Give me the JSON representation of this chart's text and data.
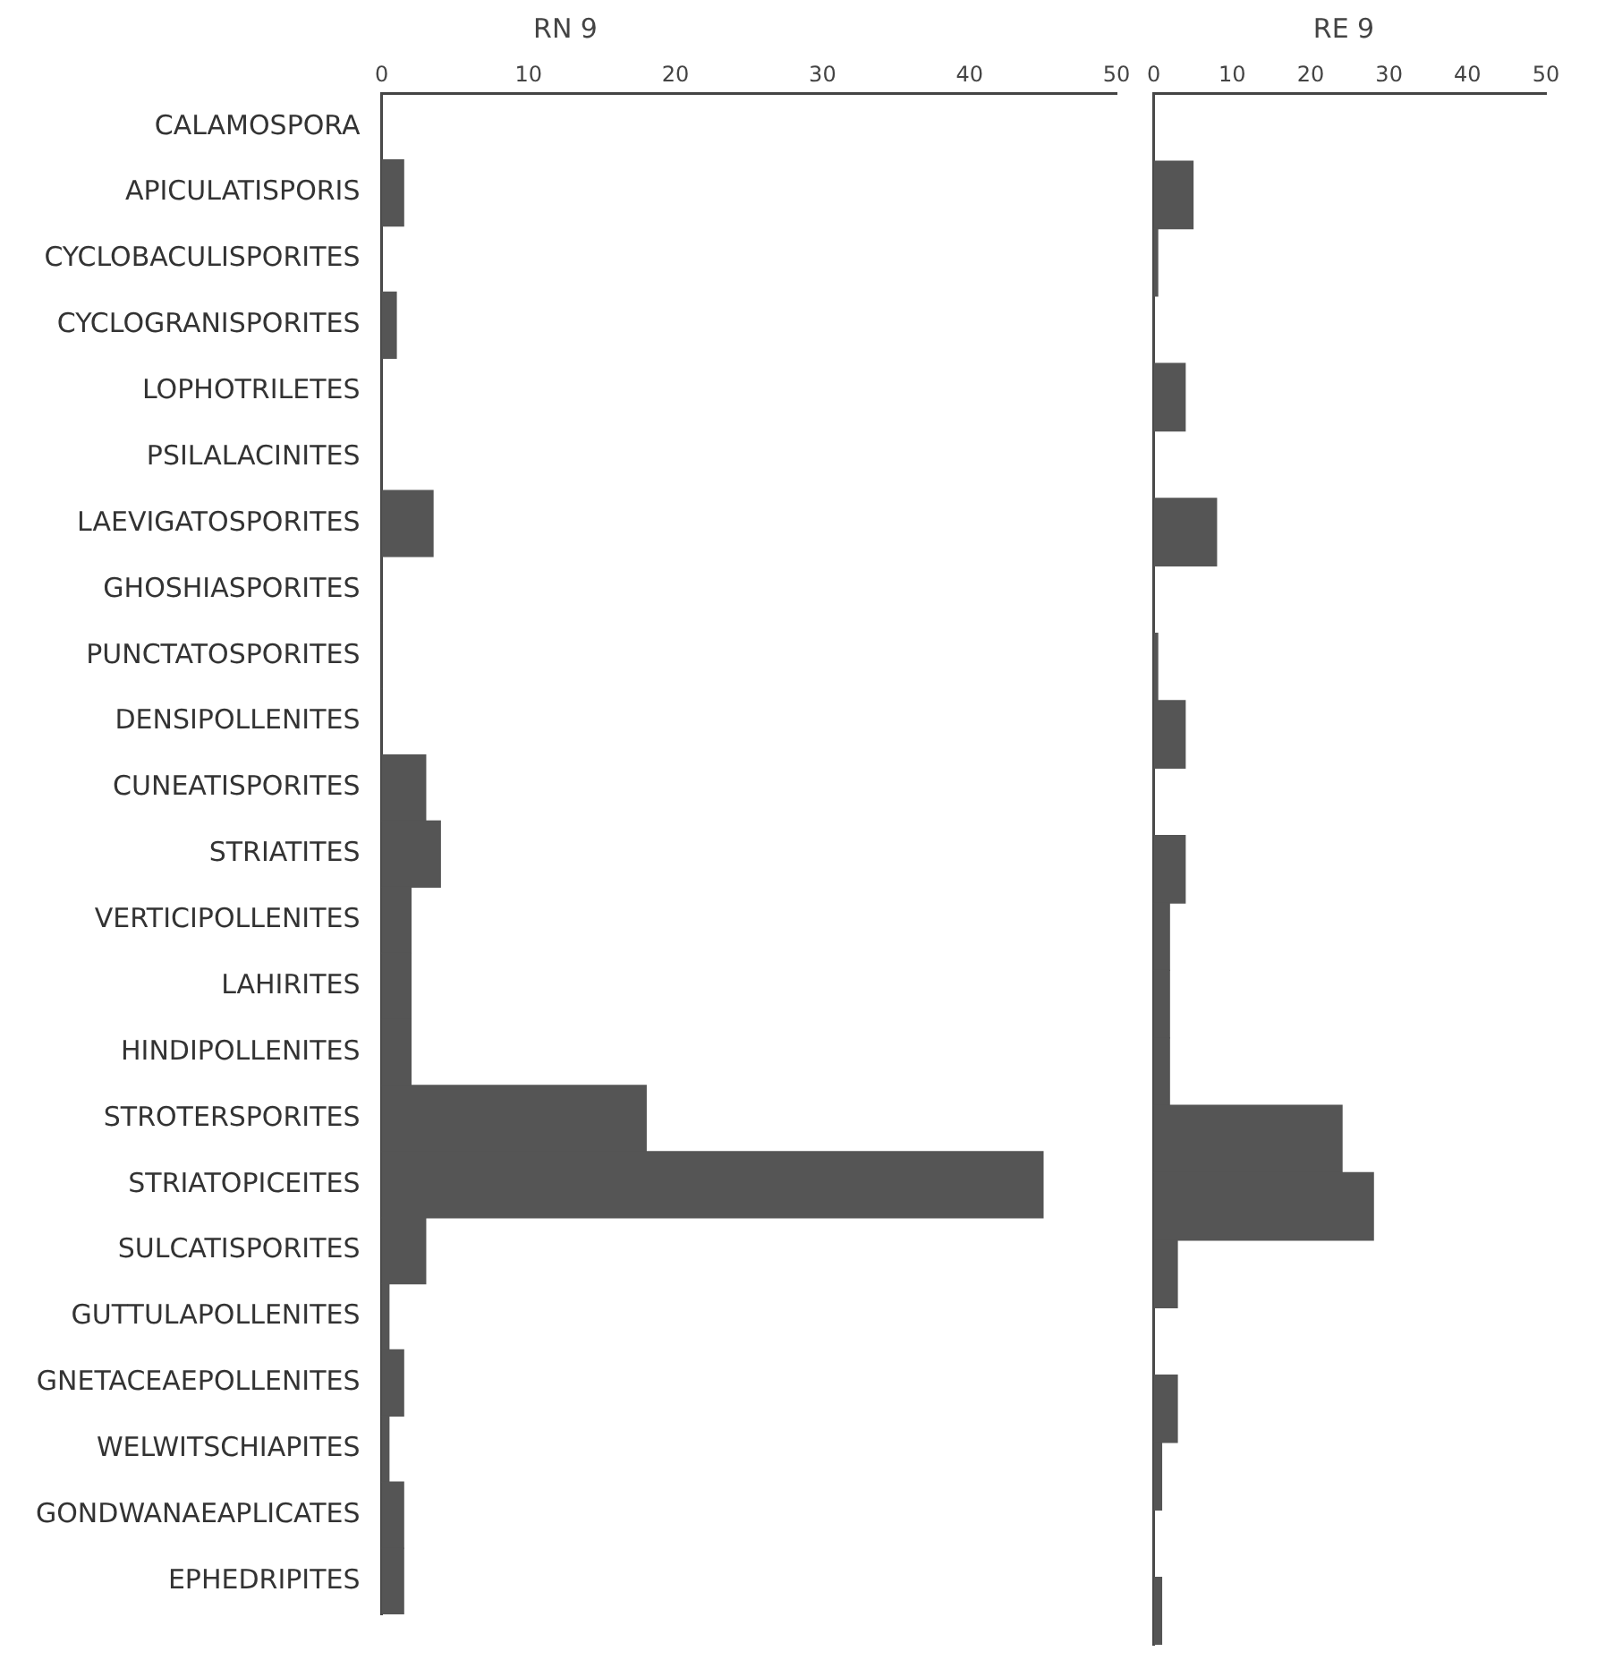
{
  "chart_data": [
    {
      "type": "bar",
      "orientation": "horizontal",
      "title": "RN 9",
      "categories": [
        "CALAMOSPORA",
        "APICULATISPORIS",
        "CYCLOBACULISPORITES",
        "CYCLOGRANISPORITES",
        "LOPHOTRILETES",
        "PSILALACINITES",
        "LAEVIGATOSPORITES",
        "GHOSHIASPORITES",
        "PUNCTATOSPORITES",
        "DENSIPOLLENITES",
        "CUNEATISPORITES",
        "STRIATITES",
        "VERTICIPOLLENITES",
        "LAHIRITES",
        "HINDIPOLLENITES",
        "STROTERSPORITES",
        "STRIATOPICEITES",
        "SULCATISPORITES",
        "GUTTULAPOLLENITES",
        "GNETACEAEPOLLENITES",
        "WELWITSCHIAPITES",
        "GONDWANAEAPLICATES",
        "EPHEDRIPITES"
      ],
      "values": [
        0,
        1.5,
        0,
        1,
        0,
        0,
        3.5,
        0,
        0,
        0,
        3,
        4,
        2,
        2,
        2,
        18,
        45,
        3,
        0.5,
        1.5,
        0.5,
        1.5,
        1.5
      ],
      "color": "#555555",
      "xlim": [
        0,
        50
      ],
      "xticks": [
        0,
        10,
        20,
        30,
        40,
        50
      ],
      "grid": false
    },
    {
      "type": "bar",
      "orientation": "horizontal",
      "title": "RE 9",
      "categories": [
        null,
        null,
        null,
        null,
        null,
        null,
        null,
        null,
        null,
        null,
        null,
        null,
        null,
        null,
        null,
        null,
        null,
        null,
        null,
        null,
        null,
        null,
        null
      ],
      "values": [
        0,
        5,
        0.5,
        0,
        4,
        0,
        8,
        0,
        0.5,
        4,
        0,
        4,
        2,
        2,
        2,
        24,
        28,
        3,
        0,
        3,
        1,
        0,
        1
      ],
      "color": "#555555",
      "xlim": [
        0,
        50
      ],
      "xticks": [
        0,
        10,
        20,
        30,
        40,
        50
      ],
      "grid": false,
      "tick_labels": "x"
    }
  ]
}
